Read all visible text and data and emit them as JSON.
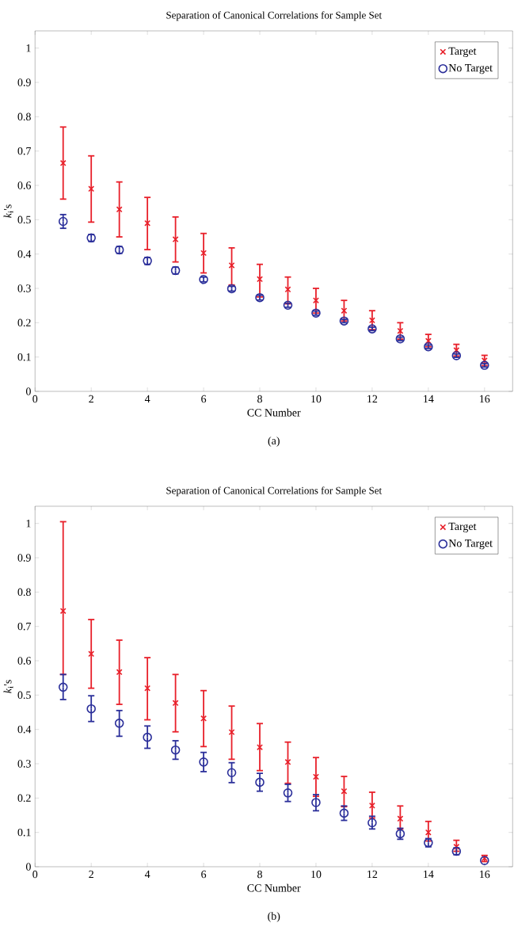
{
  "chart_data": [
    {
      "type": "scatter",
      "title": "Separation of Canonical Correlations for Sample Set",
      "xlabel": "CC Number",
      "ylabel": "*k*$_{i}$'s",
      "x": [
        1,
        2,
        3,
        4,
        5,
        6,
        7,
        8,
        9,
        10,
        11,
        12,
        13,
        14,
        15,
        16
      ],
      "series": [
        {
          "name": "Target",
          "color": "#e8202a",
          "marker": "cross",
          "values": [
            0.665,
            0.59,
            0.53,
            0.49,
            0.443,
            0.403,
            0.367,
            0.327,
            0.297,
            0.265,
            0.235,
            0.207,
            0.176,
            0.147,
            0.12,
            0.09
          ],
          "errors": [
            [
              0.56,
              0.77
            ],
            [
              0.493,
              0.686
            ],
            [
              0.45,
              0.61
            ],
            [
              0.413,
              0.565
            ],
            [
              0.377,
              0.508
            ],
            [
              0.345,
              0.46
            ],
            [
              0.31,
              0.418
            ],
            [
              0.275,
              0.37
            ],
            [
              0.255,
              0.333
            ],
            [
              0.228,
              0.3
            ],
            [
              0.205,
              0.265
            ],
            [
              0.18,
              0.235
            ],
            [
              0.152,
              0.2
            ],
            [
              0.13,
              0.166
            ],
            [
              0.103,
              0.137
            ],
            [
              0.075,
              0.105
            ]
          ]
        },
        {
          "name": "No Target",
          "color": "#2b2f9a",
          "marker": "circle",
          "values": [
            0.495,
            0.447,
            0.412,
            0.38,
            0.352,
            0.326,
            0.299,
            0.273,
            0.251,
            0.228,
            0.205,
            0.182,
            0.153,
            0.13,
            0.104,
            0.076
          ],
          "errors": [
            0.02,
            0.01,
            0.01,
            0.01,
            0.01,
            0.007,
            0.007,
            0.007,
            0.006,
            0.006,
            0.005,
            0.005,
            0.005,
            0.005,
            0.005,
            0.005
          ]
        }
      ],
      "xlim": [
        0,
        17
      ],
      "xticks": [
        0,
        2,
        4,
        6,
        8,
        10,
        12,
        14,
        16
      ],
      "ylim": [
        0,
        1.05
      ],
      "yticks": [
        0,
        0.1,
        0.2,
        0.3,
        0.4,
        0.5,
        0.6,
        0.7,
        0.8,
        0.9,
        1
      ],
      "legend": "top right",
      "annotations": [
        "(a)"
      ]
    },
    {
      "type": "scatter",
      "title": "Separation of Canonical Correlations for Sample Set",
      "xlabel": "CC Number",
      "ylabel": "*k*$_{i}$'s",
      "x": [
        1,
        2,
        3,
        4,
        5,
        6,
        7,
        8,
        9,
        10,
        11,
        12,
        13,
        14,
        15,
        16
      ],
      "series": [
        {
          "name": "Target",
          "color": "#e8202a",
          "marker": "cross",
          "values": [
            0.745,
            0.62,
            0.567,
            0.52,
            0.477,
            0.432,
            0.392,
            0.348,
            0.305,
            0.262,
            0.22,
            0.178,
            0.14,
            0.1,
            0.058,
            0.025
          ],
          "errors": [
            [
              0.56,
              1.005
            ],
            [
              0.52,
              0.72
            ],
            [
              0.473,
              0.66
            ],
            [
              0.428,
              0.609
            ],
            [
              0.393,
              0.56
            ],
            [
              0.35,
              0.513
            ],
            [
              0.313,
              0.468
            ],
            [
              0.28,
              0.417
            ],
            [
              0.243,
              0.363
            ],
            [
              0.205,
              0.318
            ],
            [
              0.175,
              0.263
            ],
            [
              0.142,
              0.217
            ],
            [
              0.11,
              0.177
            ],
            [
              0.075,
              0.132
            ],
            [
              0.045,
              0.077
            ],
            [
              0.015,
              0.033
            ]
          ]
        },
        {
          "name": "No Target",
          "color": "#2b2f9a",
          "marker": "circle",
          "values": [
            0.523,
            0.46,
            0.418,
            0.377,
            0.34,
            0.305,
            0.274,
            0.246,
            0.215,
            0.187,
            0.156,
            0.128,
            0.096,
            0.07,
            0.045,
            0.018
          ],
          "errors": [
            [
              0.487,
              0.56
            ],
            [
              0.423,
              0.498
            ],
            [
              0.38,
              0.455
            ],
            [
              0.345,
              0.41
            ],
            [
              0.313,
              0.367
            ],
            [
              0.277,
              0.333
            ],
            [
              0.245,
              0.303
            ],
            [
              0.22,
              0.272
            ],
            [
              0.19,
              0.24
            ],
            [
              0.163,
              0.21
            ],
            [
              0.135,
              0.177
            ],
            [
              0.11,
              0.147
            ],
            [
              0.08,
              0.112
            ],
            [
              0.058,
              0.082
            ],
            [
              0.035,
              0.055
            ],
            null
          ]
        }
      ],
      "xlim": [
        0,
        17
      ],
      "xticks": [
        0,
        2,
        4,
        6,
        8,
        10,
        12,
        14,
        16
      ],
      "ylim": [
        0,
        1.05
      ],
      "yticks": [
        0,
        0.1,
        0.2,
        0.3,
        0.4,
        0.5,
        0.6,
        0.7,
        0.8,
        0.9,
        1
      ],
      "legend": "top right",
      "annotations": [
        "(b)"
      ]
    }
  ]
}
